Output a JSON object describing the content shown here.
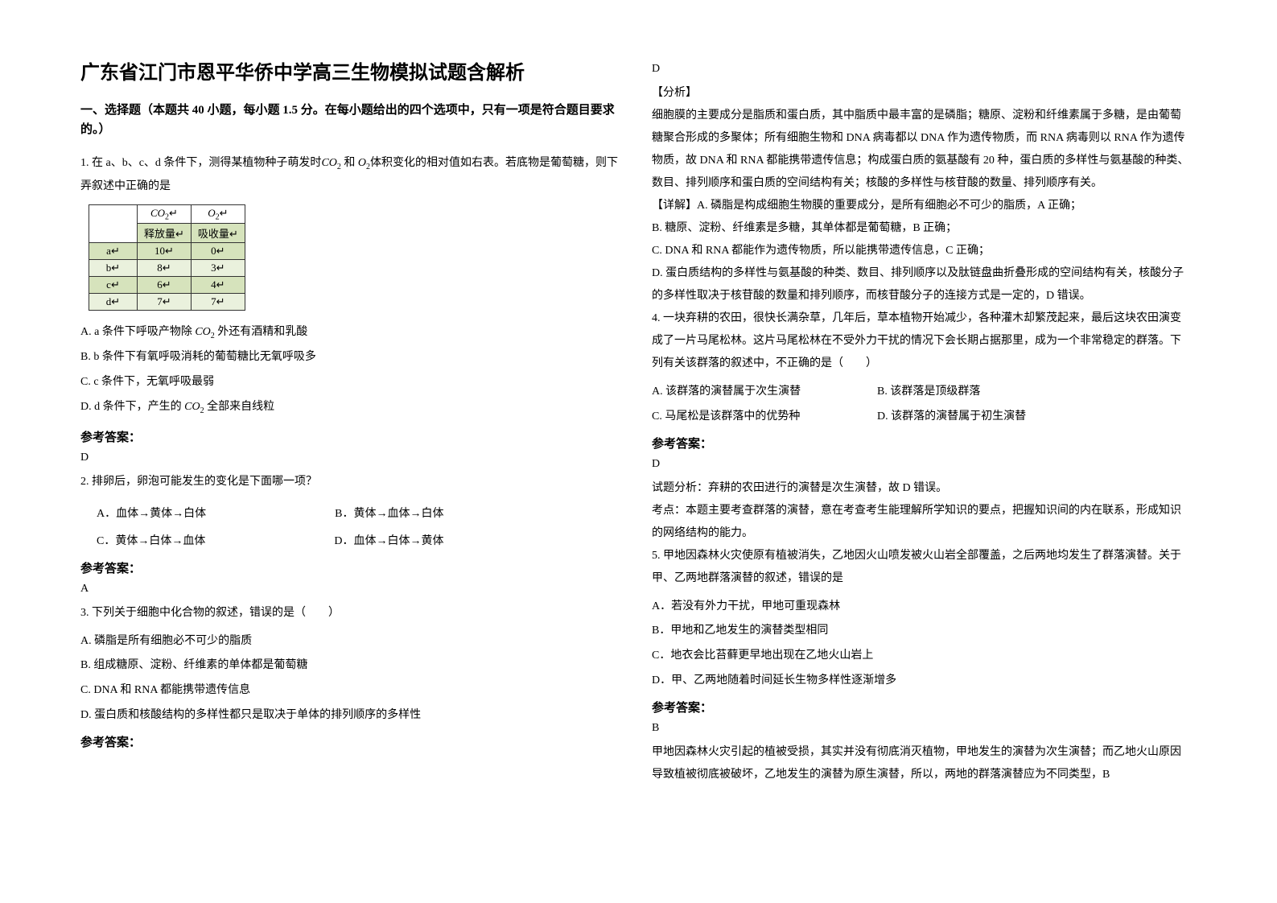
{
  "title": "广东省江门市恩平华侨中学高三生物模拟试题含解析",
  "section_head": "一、选择题（本题共 40 小题，每小题 1.5 分。在每小题给出的四个选项中，只有一项是符合题目要求的。）",
  "q1": {
    "stem_a": "1. 在 a、b、c、d 条件下，测得某植物种子萌发时",
    "stem_b": " 和 ",
    "stem_c": "体积变化的相对值如右表。若底物是葡萄糖，则下弄叙述中正确的是",
    "co2": "CO",
    "o2": "O",
    "sub2": "2",
    "th1": "释放量",
    "th2": "吸收量",
    "rows": [
      {
        "k": "a",
        "co2": "10",
        "o2": "0"
      },
      {
        "k": "b",
        "co2": "8",
        "o2": "3"
      },
      {
        "k": "c",
        "co2": "6",
        "o2": "4"
      },
      {
        "k": "d",
        "co2": "7",
        "o2": "7"
      }
    ],
    "optA_a": "A.  a 条件下呼吸产物除 ",
    "optA_b": " 外还有酒精和乳酸",
    "optB": "B.  b 条件下有氧呼吸消耗的葡萄糖比无氧呼吸多",
    "optC": "C.  c 条件下，无氧呼吸最弱",
    "optD_a": "D.  d 条件下，产生的 ",
    "optD_b": " 全部来自线粒"
  },
  "ans_label": "参考答案：",
  "q1ans": "D",
  "q2": {
    "stem": "2. 排卵后，卵泡可能发生的变化是下面哪一项？",
    "A": "A．血体→黄体→白体",
    "B": "B．黄体→血体→白体",
    "C": "C．黄体→白体→血体",
    "D": "D．血体→白体→黄体"
  },
  "q2ans": "A",
  "q3": {
    "stem": "3. 下列关于细胞中化合物的叙述，错误的是（　　）",
    "A": "A.  磷脂是所有细胞必不可少的脂质",
    "B": "B.  组成糖原、淀粉、纤维素的单体都是葡萄糖",
    "C": "C.  DNA 和 RNA 都能携带遗传信息",
    "D": "D.  蛋白质和核酸结构的多样性都只是取决于单体的排列顺序的多样性"
  },
  "q3ans": "D",
  "q3a_title": "【分析】",
  "q3a_body": "细胞膜的主要成分是脂质和蛋白质，其中脂质中最丰富的是磷脂；糖原、淀粉和纤维素属于多糖，是由葡萄糖聚合形成的多聚体；所有细胞生物和 DNA 病毒都以 DNA 作为遗传物质，而 RNA 病毒则以 RNA 作为遗传物质，故 DNA 和 RNA 都能携带遗传信息；构成蛋白质的氨基酸有 20 种，蛋白质的多样性与氨基酸的种类、数目、排列顺序和蛋白质的空间结构有关；核酸的多样性与核苷酸的数量、排列顺序有关。",
  "q3d_title": "【详解】",
  "q3d_A": "A.  磷脂是构成细胞生物膜的重要成分，是所有细胞必不可少的脂质，A 正确；",
  "q3d_B": "B.  糖原、淀粉、纤维素是多糖，其单体都是葡萄糖，B 正确；",
  "q3d_C": "C.  DNA 和 RNA 都能作为遗传物质，所以能携带遗传信息，C 正确；",
  "q3d_D": "D.  蛋白质结构的多样性与氨基酸的种类、数目、排列顺序以及肽链盘曲折叠形成的空间结构有关，核酸分子的多样性取决于核苷酸的数量和排列顺序，而核苷酸分子的连接方式是一定的，D 错误。",
  "q4": {
    "stem": "4. 一块弃耕的农田，很快长满杂草，几年后，草本植物开始减少，各种灌木却繁茂起来，最后这块农田演变成了一片马尾松林。这片马尾松林在不受外力干扰的情况下会长期占据那里，成为一个非常稳定的群落。下列有关该群落的叙述中，不正确的是（　　）",
    "A": "A.  该群落的演替属于次生演替",
    "B": "B.  该群落是顶级群落",
    "C": "C.  马尾松是该群落中的优势种",
    "D": "D.  该群落的演替属于初生演替"
  },
  "q4ans": "D",
  "q4a": "试题分析：弃耕的农田进行的演替是次生演替，故 D 错误。",
  "q4b": "考点：本题主要考查群落的演替，意在考查考生能理解所学知识的要点，把握知识间的内在联系，形成知识的网络结构的能力。",
  "q5": {
    "stem": "5. 甲地因森林火灾使原有植被消失，乙地因火山喷发被火山岩全部覆盖，之后两地均发生了群落演替。关于甲、乙两地群落演替的叙述，错误的是",
    "A": "A．若没有外力干扰，甲地可重现森林",
    "B": "B．甲地和乙地发生的演替类型相同",
    "C": "C．地衣会比苔藓更早地出现在乙地火山岩上",
    "D": "D．甲、乙两地随着时间延长生物多样性逐渐增多"
  },
  "q5ans": "B",
  "q5a": "甲地因森林火灾引起的植被受损，其实并没有彻底消灭植物，甲地发生的演替为次生演替；而乙地火山原因导致植被彻底被破坏，乙地发生的演替为原生演替，所以，两地的群落演替应为不同类型，B"
}
